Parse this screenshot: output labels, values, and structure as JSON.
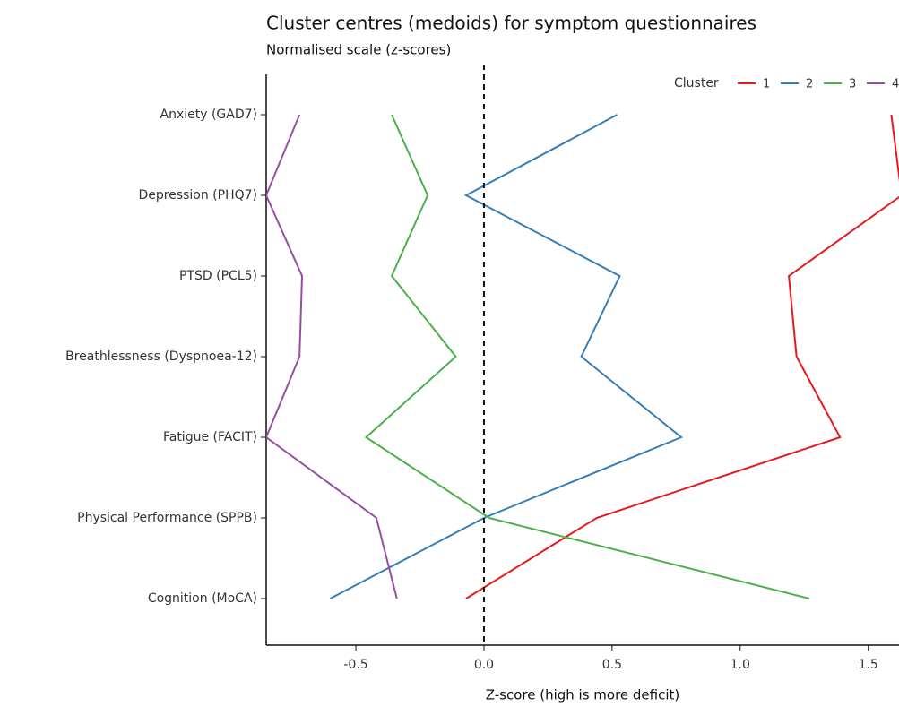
{
  "chart_data": {
    "type": "line",
    "orientation": "horizontal",
    "title": "Cluster centres (medoids) for symptom questionnaires",
    "subtitle": "Normalised scale (z-scores)",
    "x_label": "Z-score (high is more deficit)",
    "categories": [
      "Anxiety (GAD7)",
      "Depression (PHQ7)",
      "PTSD (PCL5)",
      "Breathlessness (Dyspnoea-12)",
      "Fatigue (FACIT)",
      "Physical Performance (SPPB)",
      "Cognition (MoCA)"
    ],
    "series": [
      {
        "name": "1",
        "color": "#e41a1c",
        "values": [
          1.59,
          1.63,
          1.19,
          1.22,
          1.39,
          0.44,
          -0.07
        ]
      },
      {
        "name": "2",
        "color": "#377eb8",
        "values": [
          0.52,
          -0.07,
          0.53,
          0.38,
          0.77,
          0.0,
          -0.6
        ]
      },
      {
        "name": "3",
        "color": "#4daf4a",
        "values": [
          -0.36,
          -0.22,
          -0.36,
          -0.11,
          -0.46,
          0.02,
          1.27
        ]
      },
      {
        "name": "4",
        "color": "#984ea3",
        "values": [
          -0.72,
          -0.85,
          -0.71,
          -0.72,
          -0.85,
          -0.42,
          -0.34
        ]
      }
    ],
    "legend_title": "Cluster",
    "legend_position": "top-right",
    "reference_line": 0,
    "xlim": [
      -0.85,
      1.62
    ],
    "xticks": [
      -0.5,
      {
        "value": 0,
        "label": "0.0"
      },
      0.5,
      {
        "value": 1,
        "label": "1.0"
      },
      1.5
    ],
    "grid": false
  }
}
